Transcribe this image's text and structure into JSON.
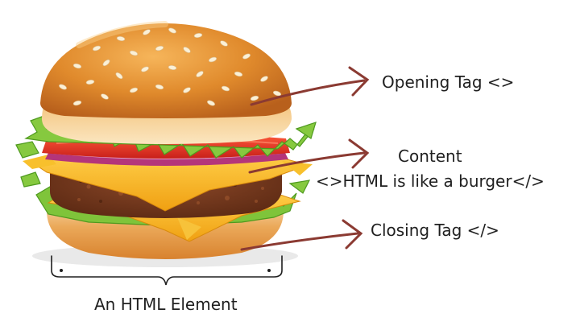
{
  "labels": {
    "opening": "Opening Tag <>",
    "content_title": "Content",
    "content_body": "<>HTML is like a burger</>",
    "closing": "Closing Tag </>",
    "element": "An HTML Element"
  },
  "colors": {
    "arrow": "#8b3a32",
    "bun": "#e08a2c",
    "bun_light": "#f7d9a6",
    "lettuce": "#7fc43a",
    "tomato": "#e23b22",
    "onion": "#b4357a",
    "patty": "#7a3a1f",
    "cheese": "#f6b21c"
  },
  "icons": [
    "burger-illustration",
    "arrow-icon",
    "curly-brace-icon"
  ]
}
